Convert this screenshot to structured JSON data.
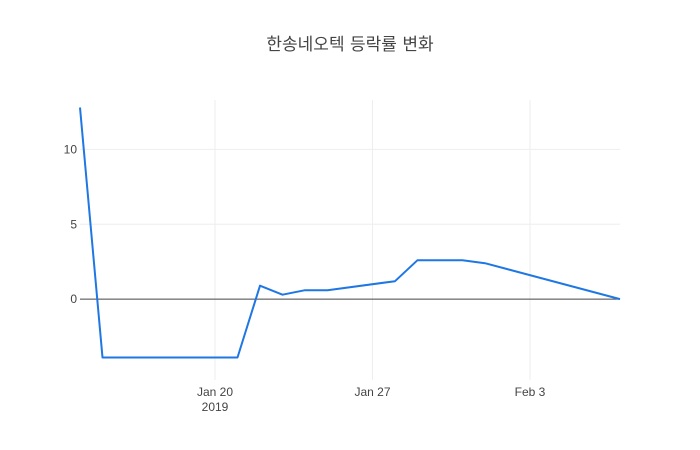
{
  "chart_data": {
    "type": "line",
    "title": "한송네오텍 등락률 변화",
    "xlabel": "",
    "ylabel": "",
    "xlim": [
      "2019-01-14",
      "2019-02-07"
    ],
    "ylim": [
      -5.4,
      13.3
    ],
    "grid": true,
    "legend": "none",
    "x_ticks": [
      {
        "value": "2019-01-20",
        "label": "Jan 20",
        "sublabel": "2019"
      },
      {
        "value": "2019-01-27",
        "label": "Jan 27",
        "sublabel": ""
      },
      {
        "value": "2019-02-03",
        "label": "Feb 3",
        "sublabel": ""
      }
    ],
    "y_ticks": [
      {
        "value": 0,
        "label": "0"
      },
      {
        "value": 5,
        "label": "5"
      },
      {
        "value": 10,
        "label": "10"
      }
    ],
    "series": [
      {
        "color": "#1f77e4",
        "x": [
          "2019-01-14",
          "2019-01-15",
          "2019-01-21",
          "2019-01-22",
          "2019-01-23",
          "2019-01-24",
          "2019-01-25",
          "2019-01-28",
          "2019-01-29",
          "2019-01-31",
          "2019-02-01",
          "2019-02-07"
        ],
        "y": [
          12.8,
          -3.9,
          -3.9,
          0.9,
          0.3,
          0.6,
          0.6,
          1.2,
          2.6,
          2.6,
          2.4,
          0.0
        ]
      }
    ]
  }
}
